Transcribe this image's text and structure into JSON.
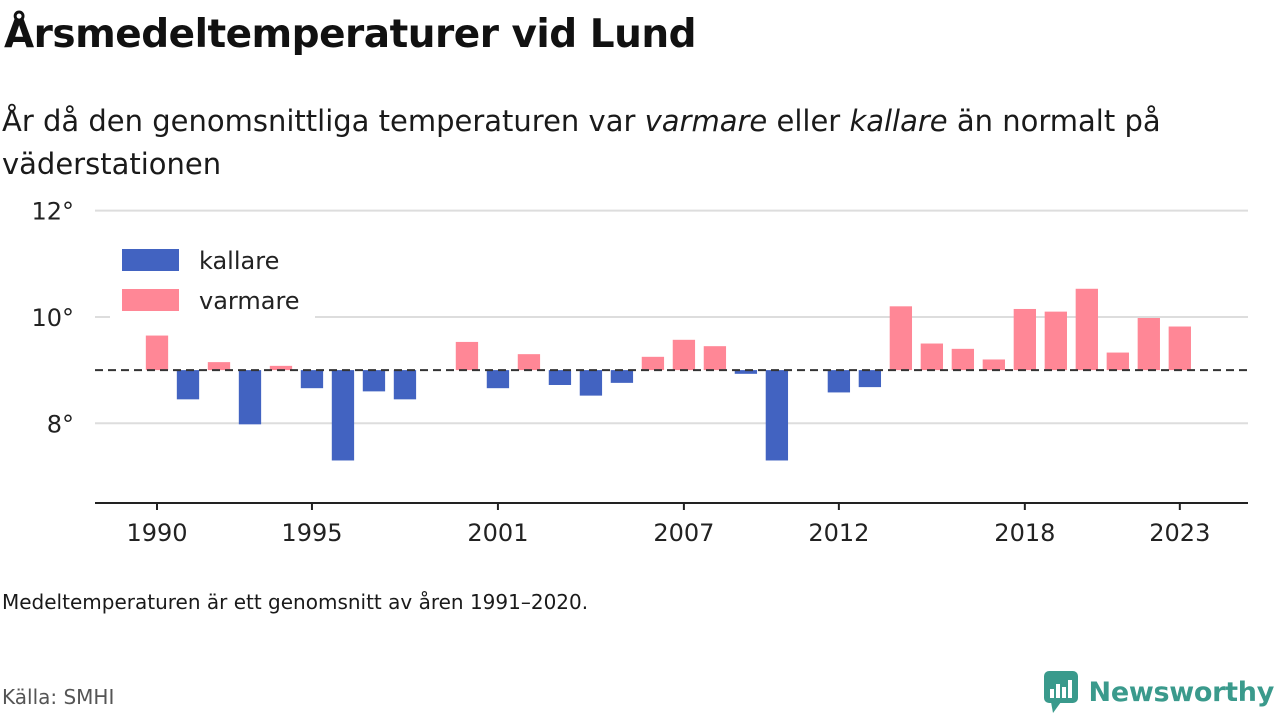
{
  "title": "Årsmedeltemperaturer vid Lund",
  "subtitle": {
    "part1": "År då den genomsnittliga temperaturen var ",
    "em1": "varmare",
    "part2": " eller ",
    "em2": "kallare",
    "part3": " än normalt på väderstationen"
  },
  "note": "Medeltemperaturen är ett genomsnitt av åren 1991–2020.",
  "source": "Källa: SMHI",
  "brand": {
    "name": "Newsworthy",
    "icon": "chart-bubble-icon",
    "color": "#3a9a8c"
  },
  "colors": {
    "kallare": "#4263c1",
    "varmare": "#ff8796",
    "grid": "#dddddd",
    "axis": "#222222",
    "baseline": "#333333"
  },
  "chart_data": {
    "type": "bar",
    "baseline": 9.0,
    "ylim": [
      6.5,
      12.2
    ],
    "yticks": [
      8,
      10,
      12
    ],
    "ytick_labels": [
      "8°",
      "10°",
      "12°"
    ],
    "xlim": [
      1988,
      2025.2
    ],
    "xticks": [
      1990,
      1995,
      2001,
      2007,
      2012,
      2018,
      2023
    ],
    "legend": {
      "position": "top-left",
      "items": [
        {
          "key": "kallare",
          "label": "kallare"
        },
        {
          "key": "varmare",
          "label": "varmare"
        }
      ]
    },
    "categories": [
      1990,
      1991,
      1992,
      1993,
      1994,
      1995,
      1996,
      1997,
      1998,
      1999,
      2000,
      2001,
      2002,
      2003,
      2004,
      2005,
      2006,
      2007,
      2008,
      2009,
      2010,
      2011,
      2012,
      2013,
      2014,
      2015,
      2016,
      2017,
      2018,
      2019,
      2020,
      2021,
      2022,
      2023
    ],
    "values": [
      9.65,
      8.45,
      9.15,
      7.98,
      9.08,
      8.66,
      7.3,
      8.6,
      8.45,
      9.0,
      9.53,
      8.66,
      9.3,
      8.72,
      8.52,
      8.76,
      9.25,
      9.57,
      9.45,
      8.93,
      7.3,
      9.0,
      8.58,
      8.68,
      10.2,
      9.5,
      9.4,
      9.2,
      10.15,
      10.1,
      10.53,
      9.33,
      9.98,
      9.82
    ]
  }
}
